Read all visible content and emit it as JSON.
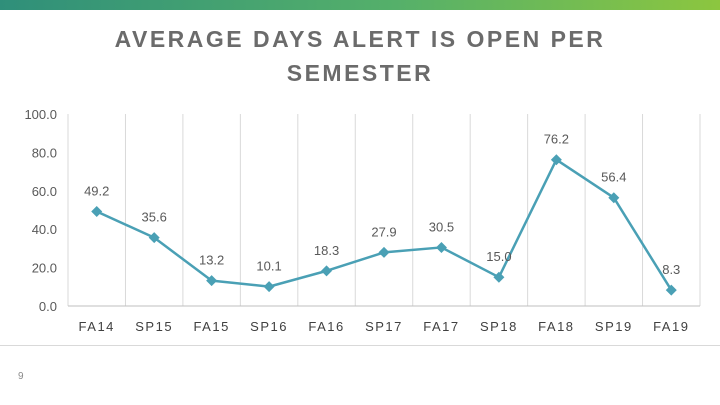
{
  "slide": {
    "page_number": "9",
    "accent_color": "#4aa0b5"
  },
  "chart_data": {
    "type": "line",
    "title": "AVERAGE DAYS ALERT IS OPEN PER SEMESTER",
    "categories": [
      "FA14",
      "SP15",
      "FA15",
      "SP16",
      "FA16",
      "SP17",
      "FA17",
      "SP18",
      "FA18",
      "SP19",
      "FA19"
    ],
    "series": [
      {
        "values": [
          49.2,
          35.6,
          13.2,
          10.1,
          18.3,
          27.9,
          30.5,
          15.0,
          76.2,
          56.4,
          8.3
        ],
        "labels": [
          "49.2",
          "35.6",
          "13.2",
          "10.1",
          "18.3",
          "27.9",
          "30.5",
          "15.0",
          "76.2",
          "56.4",
          "8.3"
        ],
        "color": "#4aa0b5",
        "marker": "diamond"
      }
    ],
    "yticks": [
      "0.0",
      "20.0",
      "40.0",
      "60.0",
      "80.0",
      "100.0"
    ],
    "ylim": [
      0,
      100
    ],
    "xlabel": "",
    "ylabel": "",
    "grid": "vertical",
    "legend": "none"
  }
}
